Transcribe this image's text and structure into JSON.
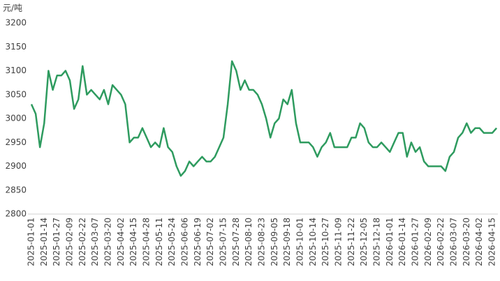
{
  "chart_data": {
    "type": "line",
    "y_label": "元/吨",
    "categories": [
      "2025-01-01",
      null,
      null,
      "2025-01-14",
      null,
      null,
      "2025-01-27",
      null,
      null,
      "2025-02-09",
      null,
      null,
      "2025-02-22",
      null,
      null,
      "2025-03-07",
      null,
      null,
      "2025-03-20",
      null,
      null,
      "2025-04-02",
      null,
      null,
      "2025-04-15",
      null,
      null,
      "2025-04-28",
      null,
      null,
      "2025-05-11",
      null,
      null,
      "2025-05-24",
      null,
      null,
      "2025-06-06",
      null,
      null,
      "2025-06-19",
      null,
      null,
      "2025-07-02",
      null,
      null,
      "2025-07-15",
      null,
      null,
      "2025-07-28",
      null,
      null,
      "2025-08-10",
      null,
      null,
      "2025-08-23",
      null,
      null,
      "2025-09-05",
      null,
      null,
      "2025-09-18",
      null,
      null,
      "2025-10-01",
      null,
      null,
      "2025-10-14",
      null,
      null,
      "2025-10-27",
      null,
      null,
      "2025-11-09",
      null,
      null,
      "2025-11-22",
      null,
      null,
      "2025-12-05",
      null,
      null,
      "2025-12-18",
      null,
      null,
      "2026-01-01",
      null,
      null,
      "2026-01-14",
      null,
      null,
      "2026-01-27",
      null,
      null,
      "2026-02-09",
      null,
      null,
      "2026-02-22",
      null,
      null,
      "2026-03-07",
      null,
      null,
      "2026-03-20",
      null,
      null,
      "2026-04-02",
      null,
      null,
      "2026-04-15",
      null
    ],
    "series": [
      {
        "color": "#2e9b5f",
        "values": [
          3030,
          3010,
          2940,
          2990,
          3100,
          3060,
          3090,
          3090,
          3100,
          3080,
          3020,
          3040,
          3110,
          3050,
          3060,
          3050,
          3040,
          3060,
          3030,
          3070,
          3060,
          3050,
          3030,
          2950,
          2960,
          2960,
          2980,
          2960,
          2940,
          2950,
          2940,
          2980,
          2940,
          2930,
          2900,
          2880,
          2890,
          2910,
          2900,
          2910,
          2920,
          2910,
          2910,
          2920,
          2940,
          2960,
          3030,
          3120,
          3100,
          3060,
          3080,
          3060,
          3060,
          3050,
          3030,
          3000,
          2960,
          2990,
          3000,
          3040,
          3030,
          3060,
          2990,
          2950,
          2950,
          2950,
          2940,
          2920,
          2940,
          2950,
          2970,
          2940,
          2940,
          2940,
          2940,
          2960,
          2960,
          2990,
          2980,
          2950,
          2940,
          2940,
          2950,
          2940,
          2930,
          2950,
          2970,
          2970,
          2920,
          2950,
          2930,
          2940,
          2910,
          2900,
          2900,
          2900,
          2900,
          2890,
          2920,
          2930,
          2960,
          2970,
          2990,
          2970,
          2980,
          2980,
          2970,
          2970,
          2970,
          2980
        ]
      }
    ],
    "ylim": [
      2800,
      3200
    ],
    "yticks": [
      2800,
      2850,
      2900,
      2950,
      3000,
      3050,
      3100,
      3150,
      3200
    ]
  }
}
